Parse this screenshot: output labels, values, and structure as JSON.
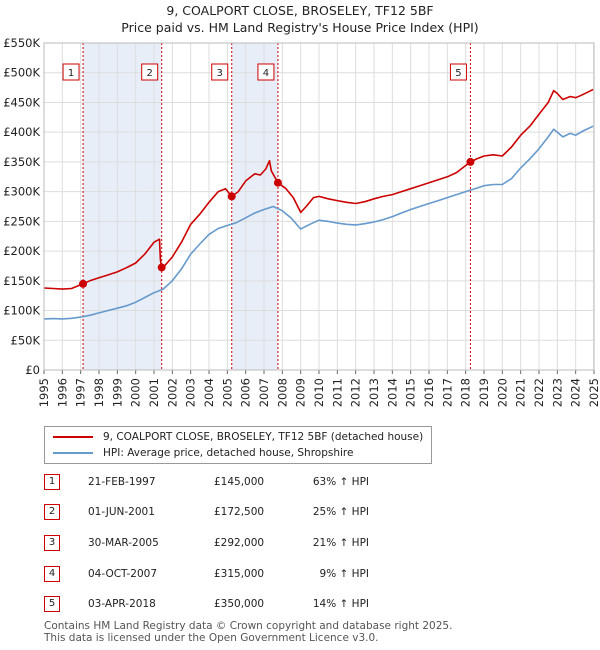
{
  "chart_data": {
    "type": "line",
    "title": "9, COALPORT CLOSE, BROSELEY, TF12 5BF",
    "subtitle": "Price paid vs. HM Land Registry's House Price Index (HPI)",
    "xlim": [
      1995,
      2025
    ],
    "ylim": [
      0,
      550000
    ],
    "y_ticks": [
      {
        "value": 0,
        "label": "£0"
      },
      {
        "value": 50000,
        "label": "£50K"
      },
      {
        "value": 100000,
        "label": "£100K"
      },
      {
        "value": 150000,
        "label": "£150K"
      },
      {
        "value": 200000,
        "label": "£200K"
      },
      {
        "value": 250000,
        "label": "£250K"
      },
      {
        "value": 300000,
        "label": "£300K"
      },
      {
        "value": 350000,
        "label": "£350K"
      },
      {
        "value": 400000,
        "label": "£400K"
      },
      {
        "value": 450000,
        "label": "£450K"
      },
      {
        "value": 500000,
        "label": "£500K"
      },
      {
        "value": 550000,
        "label": "£550K"
      }
    ],
    "x_ticks": [
      "1995",
      "1996",
      "1997",
      "1998",
      "1999",
      "2000",
      "2001",
      "2002",
      "2003",
      "2004",
      "2005",
      "2006",
      "2007",
      "2008",
      "2009",
      "2010",
      "2011",
      "2012",
      "2013",
      "2014",
      "2015",
      "2016",
      "2017",
      "2018",
      "2019",
      "2020",
      "2021",
      "2022",
      "2023",
      "2024",
      "2025"
    ],
    "grid": true,
    "series": [
      {
        "name": "9, COALPORT CLOSE, BROSELEY, TF12 5BF (detached house)",
        "color": "#cc0000",
        "points": [
          [
            1995.0,
            138000
          ],
          [
            1995.5,
            137000
          ],
          [
            1996.0,
            136000
          ],
          [
            1996.5,
            137000
          ],
          [
            1997.13,
            145000
          ],
          [
            1997.5,
            150000
          ],
          [
            1998.0,
            155000
          ],
          [
            1998.5,
            160000
          ],
          [
            1999.0,
            165000
          ],
          [
            1999.5,
            172000
          ],
          [
            2000.0,
            180000
          ],
          [
            2000.5,
            195000
          ],
          [
            2001.0,
            215000
          ],
          [
            2001.3,
            220000
          ],
          [
            2001.35,
            185000
          ],
          [
            2001.42,
            172500
          ],
          [
            2001.6,
            176000
          ],
          [
            2002.0,
            190000
          ],
          [
            2002.5,
            215000
          ],
          [
            2003.0,
            245000
          ],
          [
            2003.5,
            262000
          ],
          [
            2004.0,
            282000
          ],
          [
            2004.5,
            300000
          ],
          [
            2004.9,
            305000
          ],
          [
            2005.24,
            292000
          ],
          [
            2005.6,
            300000
          ],
          [
            2006.0,
            318000
          ],
          [
            2006.5,
            330000
          ],
          [
            2006.8,
            328000
          ],
          [
            2007.1,
            338000
          ],
          [
            2007.3,
            352000
          ],
          [
            2007.4,
            335000
          ],
          [
            2007.76,
            315000
          ],
          [
            2008.2,
            305000
          ],
          [
            2008.6,
            290000
          ],
          [
            2009.0,
            265000
          ],
          [
            2009.3,
            275000
          ],
          [
            2009.7,
            290000
          ],
          [
            2010.0,
            292000
          ],
          [
            2010.5,
            288000
          ],
          [
            2011.0,
            285000
          ],
          [
            2011.5,
            282000
          ],
          [
            2012.0,
            280000
          ],
          [
            2012.5,
            283000
          ],
          [
            2013.0,
            288000
          ],
          [
            2013.5,
            292000
          ],
          [
            2014.0,
            295000
          ],
          [
            2014.5,
            300000
          ],
          [
            2015.0,
            305000
          ],
          [
            2015.5,
            310000
          ],
          [
            2016.0,
            315000
          ],
          [
            2016.5,
            320000
          ],
          [
            2017.0,
            325000
          ],
          [
            2017.5,
            332000
          ],
          [
            2018.26,
            350000
          ],
          [
            2018.6,
            355000
          ],
          [
            2019.0,
            360000
          ],
          [
            2019.5,
            362000
          ],
          [
            2020.0,
            360000
          ],
          [
            2020.5,
            375000
          ],
          [
            2021.0,
            395000
          ],
          [
            2021.5,
            410000
          ],
          [
            2022.0,
            430000
          ],
          [
            2022.5,
            450000
          ],
          [
            2022.8,
            470000
          ],
          [
            2023.0,
            465000
          ],
          [
            2023.3,
            455000
          ],
          [
            2023.7,
            460000
          ],
          [
            2024.0,
            458000
          ],
          [
            2024.3,
            462000
          ],
          [
            2024.7,
            468000
          ],
          [
            2024.95,
            472000
          ]
        ]
      },
      {
        "name": "HPI: Average price, detached house, Shropshire",
        "color": "#6699cc",
        "points": [
          [
            1995.0,
            86000
          ],
          [
            1995.5,
            86500
          ],
          [
            1996.0,
            86000
          ],
          [
            1996.5,
            87000
          ],
          [
            1997.0,
            89000
          ],
          [
            1997.5,
            92000
          ],
          [
            1998.0,
            96000
          ],
          [
            1998.5,
            100000
          ],
          [
            1999.0,
            104000
          ],
          [
            1999.5,
            108000
          ],
          [
            2000.0,
            114000
          ],
          [
            2000.5,
            122000
          ],
          [
            2001.0,
            130000
          ],
          [
            2001.5,
            136000
          ],
          [
            2002.0,
            150000
          ],
          [
            2002.5,
            170000
          ],
          [
            2003.0,
            195000
          ],
          [
            2003.5,
            212000
          ],
          [
            2004.0,
            228000
          ],
          [
            2004.5,
            238000
          ],
          [
            2005.0,
            243000
          ],
          [
            2005.5,
            248000
          ],
          [
            2006.0,
            256000
          ],
          [
            2006.5,
            264000
          ],
          [
            2007.0,
            270000
          ],
          [
            2007.5,
            275000
          ],
          [
            2008.0,
            268000
          ],
          [
            2008.5,
            255000
          ],
          [
            2009.0,
            237000
          ],
          [
            2009.5,
            245000
          ],
          [
            2010.0,
            252000
          ],
          [
            2010.5,
            250000
          ],
          [
            2011.0,
            247000
          ],
          [
            2011.5,
            245000
          ],
          [
            2012.0,
            244000
          ],
          [
            2012.5,
            246000
          ],
          [
            2013.0,
            249000
          ],
          [
            2013.5,
            253000
          ],
          [
            2014.0,
            258000
          ],
          [
            2014.5,
            264000
          ],
          [
            2015.0,
            270000
          ],
          [
            2015.5,
            275000
          ],
          [
            2016.0,
            280000
          ],
          [
            2016.5,
            285000
          ],
          [
            2017.0,
            290000
          ],
          [
            2017.5,
            295000
          ],
          [
            2018.0,
            300000
          ],
          [
            2018.5,
            305000
          ],
          [
            2019.0,
            310000
          ],
          [
            2019.5,
            312000
          ],
          [
            2020.0,
            312000
          ],
          [
            2020.5,
            322000
          ],
          [
            2021.0,
            340000
          ],
          [
            2021.5,
            355000
          ],
          [
            2022.0,
            372000
          ],
          [
            2022.5,
            392000
          ],
          [
            2022.8,
            405000
          ],
          [
            2023.0,
            400000
          ],
          [
            2023.3,
            392000
          ],
          [
            2023.7,
            398000
          ],
          [
            2024.0,
            395000
          ],
          [
            2024.4,
            402000
          ],
          [
            2024.95,
            410000
          ]
        ]
      }
    ],
    "sales": [
      {
        "id": "1",
        "x": 1997.13,
        "value": 145000
      },
      {
        "id": "2",
        "x": 2001.42,
        "value": 172500
      },
      {
        "id": "3",
        "x": 2005.24,
        "value": 292000
      },
      {
        "id": "4",
        "x": 2007.76,
        "value": 315000
      },
      {
        "id": "5",
        "x": 2018.26,
        "value": 350000
      }
    ],
    "shaded_spans": [
      [
        1997.13,
        2001.42
      ],
      [
        2005.24,
        2007.76
      ]
    ]
  },
  "legend": {
    "property_label": "9, COALPORT CLOSE, BROSELEY, TF12 5BF (detached house)",
    "hpi_label": "HPI: Average price, detached house, Shropshire",
    "property_color": "#cc0000",
    "hpi_color": "#6699cc"
  },
  "transactions": [
    {
      "num": "1",
      "date": "21-FEB-1997",
      "price": "£145,000",
      "hpi": "63% ↑ HPI"
    },
    {
      "num": "2",
      "date": "01-JUN-2001",
      "price": "£172,500",
      "hpi": "25% ↑ HPI"
    },
    {
      "num": "3",
      "date": "30-MAR-2005",
      "price": "£292,000",
      "hpi": "21% ↑ HPI"
    },
    {
      "num": "4",
      "date": "04-OCT-2007",
      "price": "£315,000",
      "hpi": "9% ↑ HPI"
    },
    {
      "num": "5",
      "date": "03-APR-2018",
      "price": "£350,000",
      "hpi": "14% ↑ HPI"
    }
  ],
  "footer": {
    "line1": "Contains HM Land Registry data © Crown copyright and database right 2025.",
    "line2": "This data is licensed under the Open Government Licence v3.0."
  }
}
